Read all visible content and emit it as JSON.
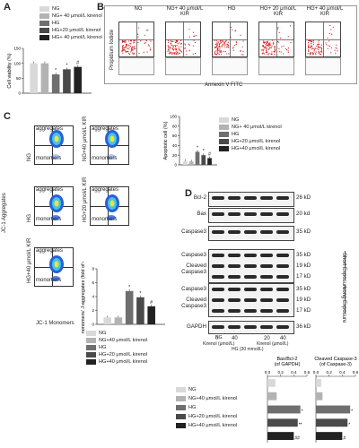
{
  "panels": {
    "A": "A",
    "B": "B",
    "C": "C",
    "D": "D"
  },
  "colors": {
    "NG": "#d9d9d9",
    "NG_KIR": "#b3b3b3",
    "HG": "#6f6f6f",
    "HG20": "#4a4a4a",
    "HG40": "#222222"
  },
  "legend_A": [
    "NG",
    "NG+ 40 μmol/L kirenol",
    "HG",
    "HG+20 μmol/L kirenol",
    "HG+ 40 μmol/L kirenol"
  ],
  "legend_C1": [
    "NG",
    "NG+ 40 μmol/L kirenol",
    "HG",
    "HG+20 μmol/L kirenol",
    "HG+40 μmol/L kirenol"
  ],
  "legend_C2": [
    "NG",
    "NG+40 μmol/L kirenol",
    "HG",
    "HG+20 μmol/L kirenol",
    "HG+40 μmol/L kirenol"
  ],
  "legend_D": [
    "NG",
    "NG+40 μmol/L kirenol",
    "HG",
    "HG+20 μmol/L kirenol",
    "HG+40 μmol/L kirenol"
  ],
  "chart_data": [
    {
      "type": "bar",
      "ylabel": "Cell viability (%)",
      "ylim": [
        0,
        150
      ],
      "yticks": [
        "0",
        "50",
        "100",
        "150"
      ],
      "categories": [
        "NG",
        "NG+40 KIR",
        "HG",
        "HG+20 KIR",
        "HG+40 KIR"
      ],
      "values": [
        100,
        100,
        63,
        80,
        88
      ],
      "annotations": [
        "",
        "",
        "*",
        "*",
        "#"
      ]
    },
    {
      "type": "bar",
      "ylabel": "Apoptotic cell (%)",
      "ylim": [
        0,
        100
      ],
      "yticks": [
        "0",
        "20",
        "40",
        "60",
        "80",
        "100"
      ],
      "categories": [
        "NG",
        "NG+40 KIR",
        "HG",
        "HG+20 KIR",
        "HG+40 KIR"
      ],
      "values": [
        8,
        7,
        27,
        20,
        14
      ],
      "annotations": [
        "",
        "",
        "*",
        "*",
        "#"
      ]
    },
    {
      "type": "bar",
      "ylabel": "J-monomers/ J-aggregates (fold of ctrl)",
      "ylim": [
        0,
        8
      ],
      "yticks": [
        "0",
        "2",
        "4",
        "6",
        "8"
      ],
      "categories": [
        "NG",
        "NG+40 KIR",
        "HG",
        "HG+20 KIR",
        "HG+40 KIR"
      ],
      "values": [
        1,
        1,
        4.8,
        3.9,
        2.6
      ],
      "annotations": [
        "",
        "",
        "*",
        "*",
        "#"
      ]
    },
    {
      "type": "bar",
      "orientation": "horizontal",
      "title": "Bax/Bcl-2 (of GAPDH)",
      "xlim": [
        0,
        0.6
      ],
      "xticks": [
        "0.0",
        "0.2",
        "0.4",
        "0.6"
      ],
      "categories": [
        "NG",
        "NG+40 KIR",
        "HG",
        "HG+20 KIR",
        "HG+40 KIR"
      ],
      "values": [
        0.12,
        0.14,
        0.5,
        0.46,
        0.4
      ],
      "annotations": [
        "",
        "",
        "*",
        "**",
        "##"
      ]
    },
    {
      "type": "bar",
      "orientation": "horizontal",
      "title": "Cleaved Caspase-3 (of Caspase-3)",
      "xlim": [
        0,
        0.6
      ],
      "xticks": [
        "0.0",
        "0.2",
        "0.4",
        "0.6"
      ],
      "categories": [
        "NG",
        "NG+40 KIR",
        "HG",
        "HG+20 KIR",
        "HG+40 KIR"
      ],
      "values": [
        0.08,
        0.1,
        0.52,
        0.48,
        0.4
      ],
      "annotations": [
        "",
        "",
        "*",
        "*",
        "#"
      ]
    }
  ],
  "panelB": {
    "titles": [
      "NG",
      "NG+ 40 μmol/L KIR",
      "HG",
      "HG+ 20 μmol/L KIR",
      "HG+ 40 μmol/L KIR"
    ],
    "ylabel": "Propidium Iodide",
    "xlabel": "Annexin V FITC"
  },
  "panelC": {
    "ylabel": "JC-1 Aggregates",
    "xlabel": "JC-1 Monomers",
    "row_labels": [
      "NG",
      "NG+40 μmol/L KIR",
      "HG",
      "HG+20 μmol/L KIR",
      "HG+40 μmol/L KIR"
    ],
    "aggregates": "aggregates",
    "monomers": "monomers"
  },
  "panelD": {
    "blots": [
      {
        "label": "Bcl-2",
        "kd": "26 kD"
      },
      {
        "label": "Bax",
        "kd": "20 kd"
      },
      {
        "label": "Caspase3",
        "kd": "35 kD"
      },
      {
        "label": "Caspase3",
        "kd": "35 kD"
      },
      {
        "label": "Cleaved Caspase3",
        "kd": "19 kD"
      },
      {
        "label": "",
        "kd": "17 kD"
      },
      {
        "label": "Caspase3",
        "kd": "35 kD"
      },
      {
        "label": "Cleaved Caspase3",
        "kd": "19 kD"
      },
      {
        "label": "",
        "kd": "17 kD"
      },
      {
        "label": "GAPDH",
        "kd": "36 kD"
      }
    ],
    "short_exposure": "Short Exposure",
    "long_exposure": "Long Exposure",
    "lanes": [
      "0",
      "40",
      "",
      "20",
      "40"
    ],
    "ng": "NG",
    "kirenol1": "Kirenol (μmol/L)",
    "hg": "HG (30 mmol/L)",
    "kirenol2": "Kirenol (μmol/L)"
  }
}
